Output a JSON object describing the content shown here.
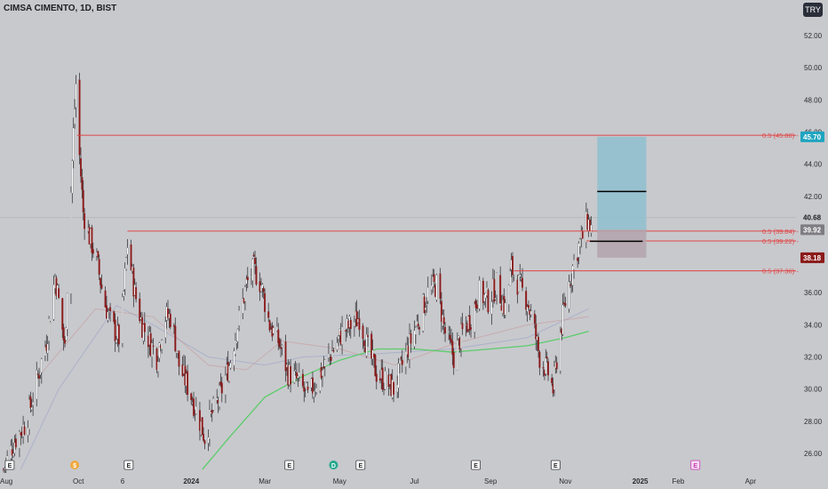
{
  "header": {
    "title": "CIMSA CIMENTO, 1D, BIST",
    "currency": "TRY"
  },
  "chart_data": {
    "type": "candlestick",
    "symbol": "CIMSA CIMENTO",
    "interval": "1D",
    "exchange": "BIST",
    "ylim": [
      25,
      53
    ],
    "y_ticks": [
      26,
      28,
      30,
      32,
      34,
      36,
      38,
      40,
      42,
      44,
      46,
      48,
      50,
      52
    ],
    "y_tick_labels": [
      "26.00",
      "28.00",
      "30.00",
      "32.00",
      "34.00",
      "36.00",
      "38.00",
      "40.00",
      "42.00",
      "44.00",
      "46.00",
      "48.00",
      "50.00",
      "52.00"
    ],
    "x_labels": [
      "Aug",
      "Oct",
      "6",
      "2024",
      "Mar",
      "May",
      "Jul",
      "Sep",
      "Nov",
      "2025",
      "Feb",
      "Apr"
    ],
    "price_path": [
      [
        "2023-08-01",
        25.0
      ],
      [
        "2023-08-10",
        26.8
      ],
      [
        "2023-08-20",
        28.0
      ],
      [
        "2023-08-28",
        30.5
      ],
      [
        "2023-09-05",
        33.0
      ],
      [
        "2023-09-12",
        37.0
      ],
      [
        "2023-09-16",
        35.0
      ],
      [
        "2023-09-20",
        32.5
      ],
      [
        "2023-09-24",
        40.5
      ],
      [
        "2023-09-27",
        46.0
      ],
      [
        "2023-09-29",
        49.0
      ],
      [
        "2023-10-02",
        44.5
      ],
      [
        "2023-10-05",
        41.0
      ],
      [
        "2023-10-10",
        39.5
      ],
      [
        "2023-10-16",
        38.0
      ],
      [
        "2023-10-22",
        35.5
      ],
      [
        "2023-10-28",
        34.0
      ],
      [
        "2023-11-04",
        33.0
      ],
      [
        "2023-11-10",
        39.0
      ],
      [
        "2023-11-16",
        36.0
      ],
      [
        "2023-11-22",
        34.0
      ],
      [
        "2023-11-28",
        33.0
      ],
      [
        "2023-12-04",
        32.0
      ],
      [
        "2023-12-10",
        34.5
      ],
      [
        "2023-12-16",
        34.5
      ],
      [
        "2023-12-22",
        31.5
      ],
      [
        "2023-12-30",
        30.0
      ],
      [
        "2024-01-06",
        28.5
      ],
      [
        "2024-01-12",
        27.0
      ],
      [
        "2024-01-18",
        28.5
      ],
      [
        "2024-01-24",
        29.5
      ],
      [
        "2024-02-01",
        31.5
      ],
      [
        "2024-02-08",
        34.0
      ],
      [
        "2024-02-15",
        36.5
      ],
      [
        "2024-02-21",
        37.5
      ],
      [
        "2024-02-27",
        36.5
      ],
      [
        "2024-03-05",
        34.0
      ],
      [
        "2024-03-12",
        33.0
      ],
      [
        "2024-03-20",
        31.0
      ],
      [
        "2024-03-28",
        30.5
      ],
      [
        "2024-04-05",
        29.5
      ],
      [
        "2024-04-12",
        30.5
      ],
      [
        "2024-04-19",
        31.5
      ],
      [
        "2024-04-26",
        32.5
      ],
      [
        "2024-05-03",
        33.5
      ],
      [
        "2024-05-10",
        34.0
      ],
      [
        "2024-05-17",
        34.5
      ],
      [
        "2024-05-24",
        32.5
      ],
      [
        "2024-05-31",
        31.0
      ],
      [
        "2024-06-07",
        30.5
      ],
      [
        "2024-06-14",
        30.0
      ],
      [
        "2024-06-21",
        31.5
      ],
      [
        "2024-06-28",
        33.0
      ],
      [
        "2024-07-05",
        34.5
      ],
      [
        "2024-07-12",
        36.0
      ],
      [
        "2024-07-19",
        36.5
      ],
      [
        "2024-07-26",
        33.5
      ],
      [
        "2024-08-02",
        32.0
      ],
      [
        "2024-08-09",
        33.5
      ],
      [
        "2024-08-16",
        34.5
      ],
      [
        "2024-08-23",
        36.0
      ],
      [
        "2024-08-30",
        35.5
      ],
      [
        "2024-09-06",
        36.5
      ],
      [
        "2024-09-13",
        35.0
      ],
      [
        "2024-09-18",
        37.5
      ],
      [
        "2024-09-24",
        36.5
      ],
      [
        "2024-10-01",
        35.5
      ],
      [
        "2024-10-06",
        34.0
      ],
      [
        "2024-10-11",
        32.0
      ],
      [
        "2024-10-18",
        31.0
      ],
      [
        "2024-10-22",
        30.0
      ],
      [
        "2024-10-26",
        32.5
      ],
      [
        "2024-10-31",
        35.0
      ],
      [
        "2024-11-05",
        37.0
      ],
      [
        "2024-11-10",
        38.5
      ],
      [
        "2024-11-15",
        39.5
      ],
      [
        "2024-11-19",
        40.5
      ],
      [
        "2024-11-22",
        40.0
      ]
    ],
    "indicators": {
      "ma_green": [
        [
          "2024-01-10",
          25.0
        ],
        [
          "2024-02-01",
          27.0
        ],
        [
          "2024-03-01",
          29.5
        ],
        [
          "2024-04-01",
          30.8
        ],
        [
          "2024-05-01",
          31.8
        ],
        [
          "2024-06-01",
          32.5
        ],
        [
          "2024-07-01",
          32.5
        ],
        [
          "2024-08-01",
          32.3
        ],
        [
          "2024-09-01",
          32.5
        ],
        [
          "2024-10-01",
          32.7
        ],
        [
          "2024-11-01",
          33.2
        ],
        [
          "2024-11-20",
          33.6
        ]
      ],
      "ma_blue_faint": [
        [
          "2023-08-15",
          25.0
        ],
        [
          "2023-09-15",
          30.0
        ],
        [
          "2023-11-01",
          35.2
        ],
        [
          "2023-12-01",
          34.0
        ],
        [
          "2024-01-15",
          32.0
        ],
        [
          "2024-03-01",
          31.5
        ],
        [
          "2024-04-01",
          32.0
        ],
        [
          "2024-06-01",
          32.2
        ],
        [
          "2024-08-01",
          32.5
        ],
        [
          "2024-10-01",
          33.2
        ],
        [
          "2024-11-20",
          35.0
        ]
      ],
      "ma_red_faint": [
        [
          "2023-09-01",
          31.0
        ],
        [
          "2023-10-15",
          35.0
        ],
        [
          "2023-12-01",
          34.5
        ],
        [
          "2024-01-15",
          31.5
        ],
        [
          "2024-02-15",
          31.2
        ],
        [
          "2024-03-15",
          33.0
        ],
        [
          "2024-05-01",
          32.5
        ],
        [
          "2024-06-15",
          31.5
        ],
        [
          "2024-08-01",
          32.8
        ],
        [
          "2024-10-01",
          34.0
        ],
        [
          "2024-11-20",
          34.5
        ]
      ]
    },
    "hlines": [
      {
        "label": "0.5 (45.80)",
        "price": 45.8,
        "from": "2023-09-30",
        "color": "#e04545"
      },
      {
        "label": "0.5 (39.84)",
        "price": 39.84,
        "from": "2023-11-10",
        "color": "#e04545"
      },
      {
        "label": "0.5 (39.22)",
        "price": 39.22,
        "from": "2024-11-18",
        "color": "#e04545"
      },
      {
        "label": "0.5 (37.36)",
        "price": 37.36,
        "from": "2024-09-20",
        "color": "#e04545"
      }
    ],
    "crosshair_price": 40.68,
    "position_box": {
      "from": "2024-11-27",
      "to": "2025-01-06",
      "entry": 39.92,
      "target": 45.7,
      "stop": 38.18,
      "mid_mark": 42.3,
      "profit_color": "#8fbfcf",
      "loss_color": "#b3a3ad"
    },
    "price_labels": [
      {
        "text": "45.70",
        "price": 45.7,
        "bg": "#1fa5c0",
        "fg": "#ffffff"
      },
      {
        "text": "40.68",
        "price": 40.68,
        "bg": "none",
        "fg": "#1e1e22"
      },
      {
        "text": "39.92",
        "price": 39.92,
        "bg": "#7d7d82",
        "fg": "#ffffff"
      },
      {
        "text": "38.18",
        "price": 38.18,
        "bg": "#8b1a1a",
        "fg": "#ffffff"
      }
    ],
    "events": [
      {
        "glyph": "E",
        "date": "2023-08-06",
        "kind": "earnings"
      },
      {
        "glyph": "$",
        "date": "2023-09-28",
        "kind": "dividend"
      },
      {
        "glyph": "E",
        "date": "2023-11-11",
        "kind": "earnings"
      },
      {
        "glyph": "E",
        "date": "2024-03-21",
        "kind": "earnings"
      },
      {
        "glyph": "D",
        "date": "2024-04-26",
        "kind": "dividend"
      },
      {
        "glyph": "E",
        "date": "2024-05-18",
        "kind": "earnings"
      },
      {
        "glyph": "E",
        "date": "2024-08-20",
        "kind": "earnings"
      },
      {
        "glyph": "E",
        "date": "2024-10-24",
        "kind": "earnings"
      },
      {
        "glyph": "E",
        "date": "2025-02-15",
        "kind": "earnings-future"
      }
    ],
    "colors": {
      "up": "#ffffff",
      "down": "#8b1a1a",
      "wick": "#3a3a3e",
      "background": "#c8c9cd"
    }
  }
}
